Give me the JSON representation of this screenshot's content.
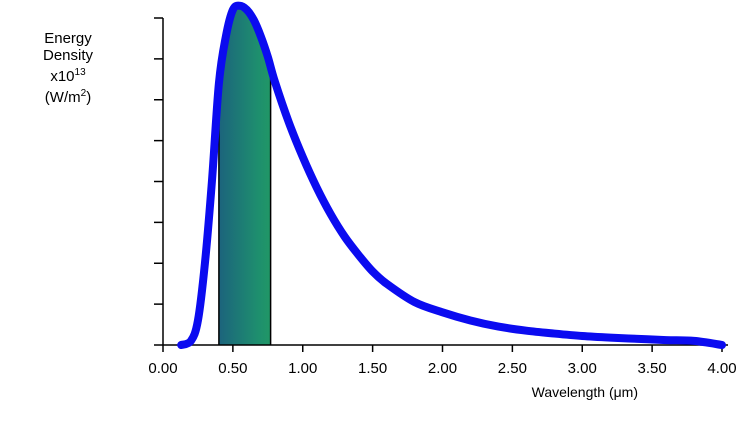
{
  "chart_data": {
    "type": "line",
    "title": "",
    "ylabel_lines": [
      "Energy",
      "Density",
      "x10",
      "13",
      "(W/m",
      "2",
      ")"
    ],
    "xlabel": "Wavelength (μm)",
    "xlim": [
      0.0,
      4.0
    ],
    "ylim": [
      0,
      8
    ],
    "x_ticks": [
      "0.00",
      "0.50",
      "1.00",
      "1.50",
      "2.00",
      "2.50",
      "3.00",
      "3.50",
      "4.00"
    ],
    "x_tick_values": [
      0.0,
      0.5,
      1.0,
      1.5,
      2.0,
      2.5,
      3.0,
      3.5,
      4.0
    ],
    "y_ticks": [
      0,
      1,
      2,
      3,
      4,
      5,
      6,
      7,
      8
    ],
    "y_tick_labels_shown": false,
    "visible_band": {
      "from": 0.4,
      "to": 0.77
    },
    "series": [
      {
        "x": [
          0.13,
          0.2,
          0.25,
          0.3,
          0.35,
          0.4,
          0.45,
          0.5,
          0.55,
          0.6,
          0.65,
          0.7,
          0.75,
          0.8,
          0.9,
          1.0,
          1.1,
          1.2,
          1.3,
          1.4,
          1.5,
          1.6,
          1.8,
          2.0,
          2.2,
          2.4,
          2.6,
          2.8,
          3.0,
          3.2,
          3.4,
          3.6,
          3.8,
          4.0
        ],
        "y": [
          0.0,
          0.1,
          0.6,
          2.0,
          4.0,
          6.4,
          7.55,
          8.2,
          8.3,
          8.2,
          7.95,
          7.55,
          7.05,
          6.45,
          5.45,
          4.6,
          3.85,
          3.2,
          2.65,
          2.2,
          1.8,
          1.5,
          1.05,
          0.8,
          0.6,
          0.45,
          0.35,
          0.28,
          0.22,
          0.18,
          0.15,
          0.12,
          0.1,
          0.0
        ]
      }
    ],
    "colors": {
      "curve": "#0b0bf0",
      "axis": "#000000",
      "spectrum": [
        "#1a3a8a",
        "#1e8f6e",
        "#2fbf3a",
        "#b8e23a",
        "#ffd23a",
        "#ff8a3a",
        "#ff6b6b",
        "#ffb0a8"
      ]
    }
  }
}
